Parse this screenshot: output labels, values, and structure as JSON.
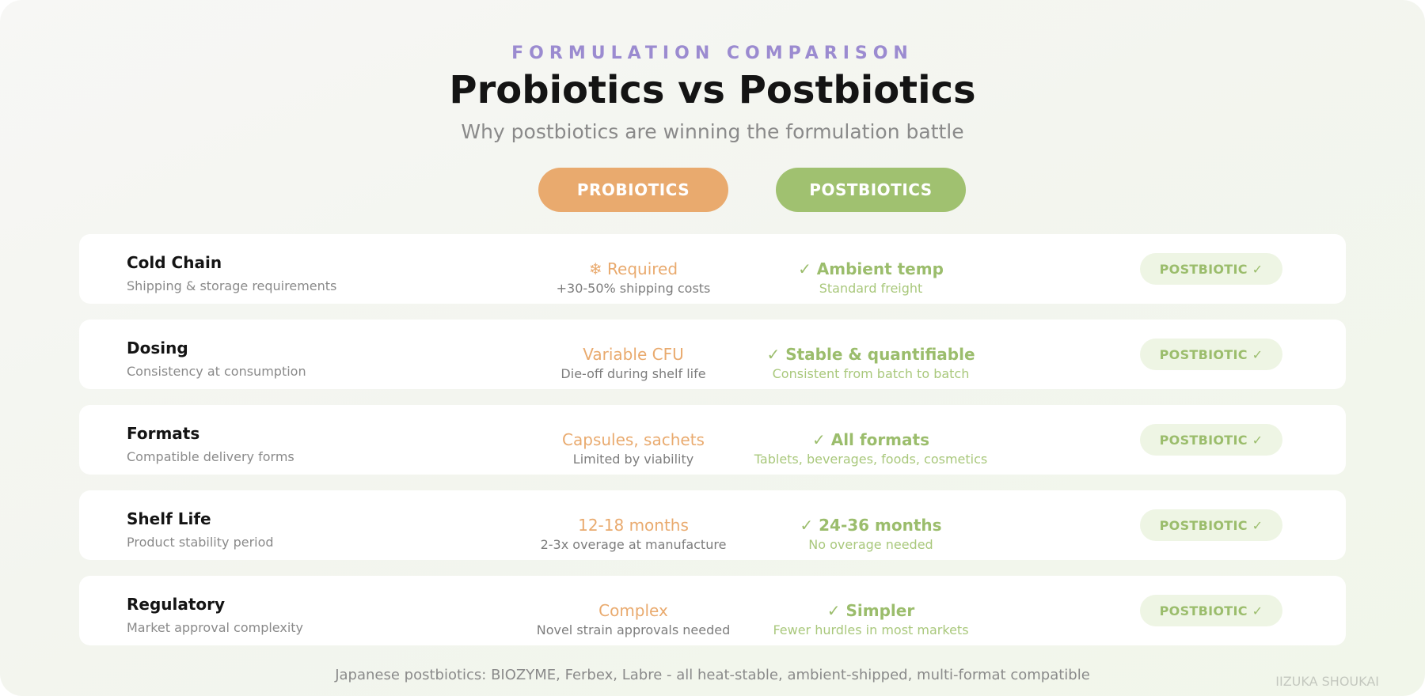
{
  "header": {
    "eyebrow": "FORMULATION COMPARISON",
    "title": "Probiotics vs Postbiotics",
    "subtitle": "Why postbiotics are winning the formulation battle"
  },
  "columns": {
    "probiotics": "PROBIOTICS",
    "postbiotics": "POSTBIOTICS"
  },
  "rows": [
    {
      "label": "Cold Chain",
      "desc": "Shipping & storage requirements",
      "pro_main": "❄ Required",
      "pro_sub": "+30-50% shipping costs",
      "post_main": "✓ Ambient temp",
      "post_sub": "Standard freight",
      "badge": "POSTBIOTIC ✓"
    },
    {
      "label": "Dosing",
      "desc": "Consistency at consumption",
      "pro_main": "Variable CFU",
      "pro_sub": "Die-off during shelf life",
      "post_main": "✓ Stable & quantifiable",
      "post_sub": "Consistent from batch to batch",
      "badge": "POSTBIOTIC ✓"
    },
    {
      "label": "Formats",
      "desc": "Compatible delivery forms",
      "pro_main": "Capsules, sachets",
      "pro_sub": "Limited by viability",
      "post_main": "✓ All formats",
      "post_sub": "Tablets, beverages, foods, cosmetics",
      "badge": "POSTBIOTIC ✓"
    },
    {
      "label": "Shelf Life",
      "desc": "Product stability period",
      "pro_main": "12-18 months",
      "pro_sub": "2-3x overage at manufacture",
      "post_main": "✓ 24-36 months",
      "post_sub": "No overage needed",
      "badge": "POSTBIOTIC ✓"
    },
    {
      "label": "Regulatory",
      "desc": "Market approval complexity",
      "pro_main": "Complex",
      "pro_sub": "Novel strain approvals needed",
      "post_main": "✓ Simpler",
      "post_sub": "Fewer hurdles in most markets",
      "badge": "POSTBIOTIC ✓"
    }
  ],
  "footer": "Japanese postbiotics: BIOZYME, Ferbex, Labre - all heat-stable, ambient-shipped, multi-format compatible",
  "watermark": "IIZUKA SHOUKAI",
  "colors": {
    "probiotic_accent": "#e9aa6e",
    "postbiotic_accent": "#a0c170",
    "eyebrow": "#9b8bd0"
  }
}
